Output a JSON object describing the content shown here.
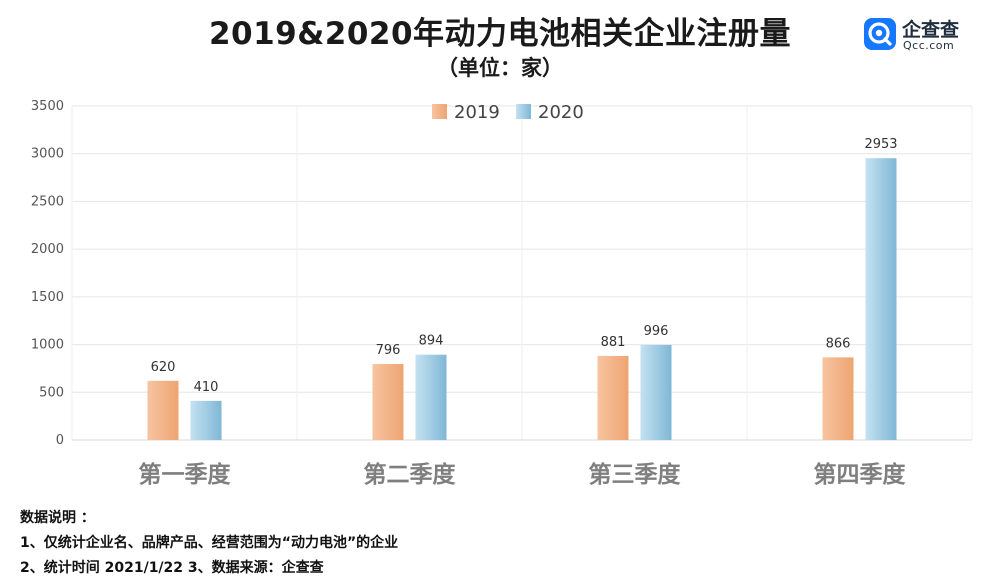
{
  "header": {
    "title": "2019&2020年动力电池相关企业注册量",
    "subtitle": "（单位：家）"
  },
  "logo": {
    "icon": "qcc-logo-icon",
    "name": "企查查",
    "domain": "Qcc.com",
    "color": "#1677ff"
  },
  "notes": {
    "heading": "数据说明 ：",
    "line1": "1、仅统计企业名、品牌产品、经营范围为“动力电池”的企业",
    "line2": "2、统计时间 2021/1/22  3、数据来源：企查查"
  },
  "chart_data": {
    "type": "bar",
    "categories": [
      "第一季度",
      "第二季度",
      "第三季度",
      "第四季度"
    ],
    "series": [
      {
        "name": "2019",
        "values": [
          620,
          796,
          881,
          866
        ],
        "color": "#f4b183"
      },
      {
        "name": "2020",
        "values": [
          410,
          894,
          996,
          2953
        ],
        "color": "#9dcbe3"
      }
    ],
    "ylim": [
      0,
      3500
    ],
    "yticks": [
      0,
      500,
      1000,
      1500,
      2000,
      2500,
      3000,
      3500
    ],
    "grid": true,
    "legend": "top-center",
    "data_labels": true
  }
}
